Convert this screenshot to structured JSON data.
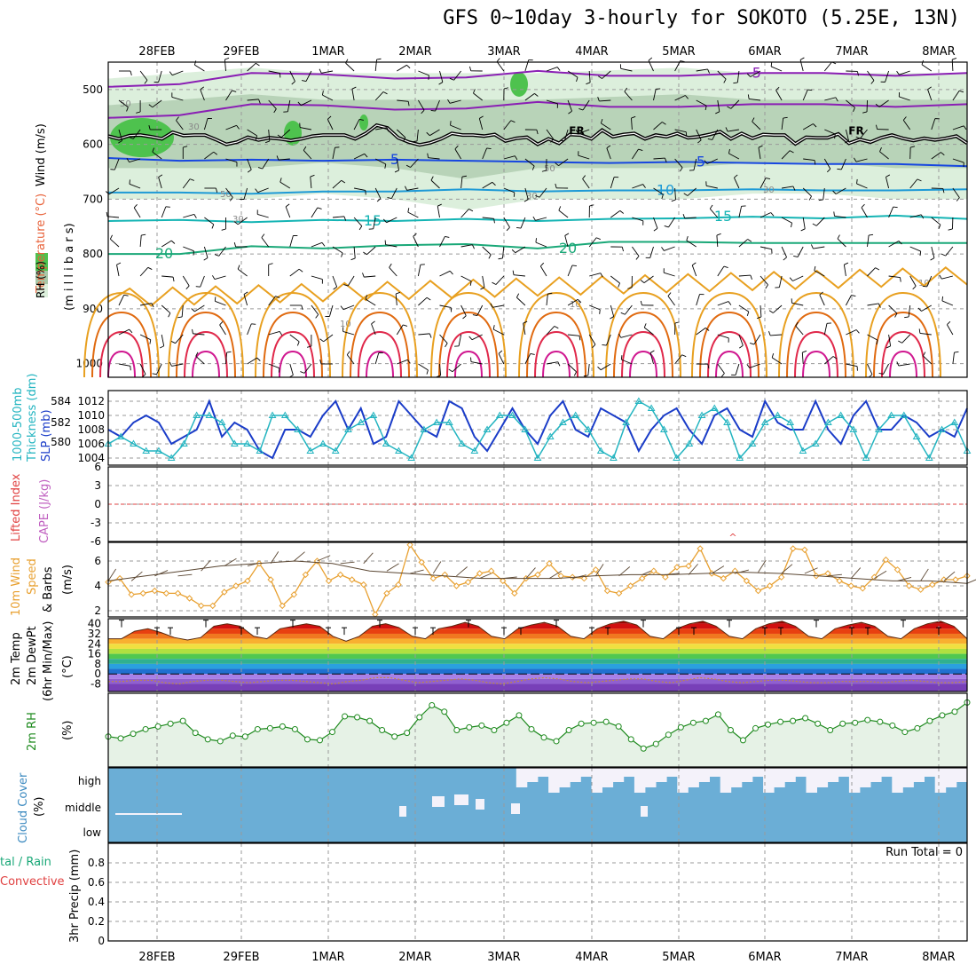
{
  "title": "GFS 0~10day 3-hourly for SOKOTO (5.25E, 13N)",
  "dates": [
    "28FEB",
    "29FEB",
    "1MAR",
    "2MAR",
    "3MAR",
    "4MAR",
    "5MAR",
    "6MAR",
    "7MAR",
    "8MAR"
  ],
  "panel_labels": {
    "upper_wind": "Wind (m/s)",
    "upper_temp": "Temperature (°C)",
    "upper_rh": "RH (%)",
    "upper_units": "(m i l l i b a r s)",
    "thick_a": "1000-500mb",
    "thick_b": "Thickness (dm)",
    "slp": "SLP (mb)",
    "li": "Lifted Index",
    "cape": "CAPE (J/kg)",
    "w10_a": "10m Wind",
    "w10_b": "Speed",
    "w10_c": "& Barbs",
    "w10_units": "(m/s)",
    "t2_a": "2m Temp",
    "t2_b": "2m DewPt",
    "t2_c": "(6hr Min/Max)",
    "t2_units": "(°C)",
    "rh2": "2m RH",
    "rh2_units": "(%)",
    "cloud": "Cloud Cover",
    "cloud_units": "(%)",
    "precip_a": "tal / Rain",
    "precip_b": "Convective",
    "precip_c": "3hr Precip (mm)",
    "run_total": "Run Total = 0"
  },
  "contour_labels": {
    "fr": "FR",
    "t_minus5": "-5",
    "t_5": "5",
    "t_10": "10",
    "t_15": "15",
    "t_20": "20",
    "rh_50": "50",
    "rh_30": "30",
    "rh_10": "10"
  },
  "colors": {
    "purple": "#8a1fb4",
    "black": "#000000",
    "blue": "#1747e0",
    "sky": "#1e9ad6",
    "teal": "#14b4b4",
    "green": "#1aa878",
    "orange": "#e8a020",
    "dkorange": "#e06a10",
    "red": "#e0284a",
    "magenta": "#d01890",
    "rh_light": "#dcefdc",
    "rh_mid": "#a8c8a8",
    "rh_dark": "#6e8a6e",
    "rh_green": "#4ec24e",
    "slp_line": "#1a3cc8",
    "thick_line": "#22b4c0",
    "li_line": "#e04040",
    "w10_line": "#e8a030",
    "rh2_line": "#1e8a1e",
    "rh2_fill": "#e6f2e6",
    "cloud_fill": "#6baed6",
    "cloud_gap": "#f4f2fa"
  },
  "chart_data": [
    {
      "type": "contour",
      "name": "upper",
      "ylabel": "Wind (m/s)",
      "yticks": [
        500,
        600,
        700,
        800,
        900,
        1000
      ],
      "ylim": [
        450,
        1025
      ],
      "fr_level": [
        585,
        590,
        584,
        583,
        586,
        590,
        578,
        584,
        583,
        583,
        591,
        600,
        596,
        587,
        592,
        588,
        590,
        593,
        590,
        585,
        583,
        583,
        583,
        590,
        580,
        565,
        570,
        588,
        596,
        601,
        597,
        590,
        580,
        583,
        583,
        585,
        582,
        594,
        589,
        587,
        600,
        590,
        598,
        582,
        583,
        590,
        574,
        586,
        582,
        580,
        590,
        583,
        586,
        580,
        588,
        586,
        582,
        577,
        590,
        580,
        589,
        582,
        583,
        583,
        599,
        587,
        588,
        588,
        581,
        598,
        591,
        596,
        588,
        583,
        589,
        593,
        589,
        592,
        589,
        585,
        598
      ],
      "isotherms": [
        {
          "name": "-5",
          "levels": [
            495,
            490,
            470,
            472,
            480,
            478,
            466,
            475,
            475,
            470,
            470,
            475,
            470
          ]
        },
        {
          "name": "5",
          "levels": [
            625,
            630,
            628,
            630,
            628,
            630,
            632,
            634,
            632,
            634,
            636,
            636,
            640
          ]
        },
        {
          "name": "10",
          "levels": [
            688,
            688,
            690,
            686,
            686,
            682,
            686,
            684,
            684,
            682,
            684,
            684,
            682
          ]
        },
        {
          "name": "15",
          "levels": [
            740,
            738,
            742,
            738,
            740,
            736,
            740,
            736,
            735,
            732,
            735,
            730,
            736
          ]
        },
        {
          "name": "20",
          "levels": [
            800,
            800,
            786,
            790,
            784,
            782,
            790,
            778,
            778,
            780,
            780,
            780,
            780
          ]
        }
      ],
      "rh_light_top": [
        480,
        470,
        460,
        470,
        470,
        470,
        470,
        465,
        460,
        470,
        470,
        470,
        470
      ],
      "rh_light_bottom": [
        700,
        700,
        700,
        690,
        700,
        720,
        700,
        700,
        700,
        690,
        690,
        700,
        700
      ]
    },
    {
      "type": "line",
      "name": "slp-thickness",
      "y2label": "SLP (mb)",
      "ylabel": "1000-500mb Thickness (dm)",
      "slp_ticks": [
        1004,
        1006,
        1008,
        1010,
        1012
      ],
      "thick_ticks": [
        580,
        582,
        584
      ],
      "slp_ylim": [
        1003,
        1013.5
      ],
      "slp": [
        1008,
        1007,
        1009,
        1010,
        1009,
        1006,
        1007,
        1008,
        1012,
        1007,
        1009,
        1008,
        1005,
        1004,
        1008,
        1008,
        1007,
        1010,
        1012,
        1008,
        1011,
        1006,
        1007,
        1012,
        1010,
        1008,
        1007,
        1012,
        1011,
        1007,
        1005,
        1008,
        1011,
        1008,
        1006,
        1010,
        1012,
        1008,
        1007,
        1011,
        1010,
        1009,
        1005,
        1008,
        1010,
        1011,
        1008,
        1006,
        1010,
        1011,
        1008,
        1007,
        1012,
        1009,
        1008,
        1008,
        1012,
        1008,
        1006,
        1010,
        1012,
        1008,
        1008,
        1010,
        1009,
        1007,
        1008,
        1007,
        1011
      ],
      "thick": [
        1006,
        1007,
        1006,
        1005,
        1005,
        1004,
        1006,
        1010,
        1010,
        1009,
        1006,
        1006,
        1005,
        1010,
        1010,
        1008,
        1005,
        1006,
        1005,
        1008,
        1009,
        1010,
        1006,
        1005,
        1004,
        1008,
        1009,
        1009,
        1006,
        1005,
        1008,
        1010,
        1010,
        1008,
        1004,
        1007,
        1009,
        1010,
        1008,
        1005,
        1004,
        1009,
        1012,
        1011,
        1008,
        1004,
        1006,
        1010,
        1011,
        1009,
        1004,
        1006,
        1009,
        1010,
        1009,
        1005,
        1006,
        1009,
        1010,
        1008,
        1004,
        1008,
        1010,
        1010,
        1007,
        1004,
        1008,
        1009,
        1005
      ]
    },
    {
      "type": "line",
      "name": "lifted-index-cape",
      "ylabel": "Lifted Index",
      "y2label": "CAPE (J/kg)",
      "yticks": [
        "6",
        "3",
        "0",
        "-3",
        "-6"
      ],
      "ylim": [
        -6,
        6
      ],
      "li": [
        0,
        0,
        0,
        0,
        0,
        0,
        0,
        0,
        0,
        0,
        0,
        0,
        0
      ]
    },
    {
      "type": "line",
      "name": "wind10",
      "ylabel": "10m Wind Speed & Barbs (m/s)",
      "yticks": [
        2,
        4,
        6
      ],
      "ylim": [
        1.5,
        7.5
      ],
      "values": [
        4.3,
        4.6,
        3.3,
        3.4,
        3.6,
        3.4,
        3.4,
        3.0,
        2.4,
        2.4,
        3.5,
        4.0,
        4.4,
        5.8,
        4.5,
        2.4,
        3.3,
        4.9,
        6.0,
        4.4,
        4.9,
        4.5,
        4.1,
        1.7,
        3.4,
        4.1,
        7.3,
        5.9,
        4.6,
        4.9,
        4.0,
        4.3,
        5.0,
        5.2,
        4.4,
        3.4,
        4.6,
        4.9,
        5.8,
        4.8,
        4.7,
        4.6,
        5.3,
        3.6,
        3.4,
        4.0,
        4.6,
        5.2,
        4.7,
        5.5,
        5.6,
        7.0,
        5.0,
        4.6,
        5.2,
        4.4,
        3.6,
        4.0,
        4.7,
        7.0,
        6.9,
        4.8,
        5.0,
        4.4,
        4.0,
        3.8,
        4.7,
        6.1,
        5.3,
        4.0,
        3.7,
        4.1,
        4.5,
        4.5,
        4.8
      ],
      "dewline": [
        4.4,
        4.8,
        5.2,
        5.6,
        5.8,
        6.0,
        5.8,
        5.2,
        5.0,
        4.8,
        4.6,
        4.6,
        4.6,
        4.8,
        4.9,
        4.9,
        5.0,
        5.1,
        5.0,
        4.8,
        4.6,
        4.4,
        4.4,
        4.2
      ]
    },
    {
      "type": "area",
      "name": "temp2m",
      "ylabel": "2m Temp 2m DewPt (6hr Min/Max) (°C)",
      "yticks": [
        "40",
        "32",
        "24",
        "16",
        "8",
        "0",
        "-8"
      ],
      "ylim": [
        -14,
        44
      ],
      "temp": [
        28,
        28,
        34,
        36,
        33,
        29,
        27,
        29,
        38,
        40,
        38,
        30,
        28,
        36,
        38,
        40,
        38,
        30,
        26,
        30,
        38,
        40,
        37,
        30,
        28,
        36,
        38,
        41,
        38,
        30,
        28,
        36,
        39,
        41,
        38,
        30,
        28,
        36,
        40,
        42,
        39,
        30,
        28,
        36,
        40,
        42,
        38,
        30,
        28,
        36,
        40,
        42,
        38,
        30,
        28,
        36,
        39,
        41,
        38,
        30,
        28,
        36,
        40,
        42,
        38,
        28
      ],
      "dewpt": [
        -6,
        -6,
        -5,
        -5,
        -7,
        -8,
        -6,
        -5,
        -5,
        -6,
        -7,
        -6,
        -5,
        -5,
        -6,
        -7,
        -8,
        -6,
        -5,
        -3,
        -3,
        -5,
        -7,
        -6,
        -5,
        -4,
        -5,
        -7,
        -8,
        -6,
        -4,
        -3,
        -4,
        -6,
        -7,
        -6,
        -5,
        -4,
        -4,
        -6,
        -7,
        -5,
        -3,
        -4,
        -6,
        -7,
        -6,
        -5,
        -5,
        -6,
        -7,
        -7,
        -6,
        -6,
        -6,
        -7,
        -6,
        -5,
        -6,
        -7,
        -7,
        -6
      ]
    },
    {
      "type": "area",
      "name": "rh2m",
      "ylabel": "2m RH (%)",
      "ylim": [
        0,
        80
      ],
      "values": [
        33,
        31,
        36,
        41,
        44,
        47,
        50,
        37,
        30,
        28,
        34,
        33,
        41,
        42,
        44,
        41,
        30,
        29,
        38,
        55,
        54,
        50,
        40,
        33,
        37,
        54,
        67,
        60,
        40,
        43,
        45,
        40,
        48,
        56,
        41,
        32,
        28,
        40,
        47,
        48,
        49,
        44,
        30,
        20,
        25,
        35,
        43,
        48,
        50,
        57,
        40,
        29,
        42,
        46,
        49,
        50,
        53,
        47,
        40,
        47,
        48,
        51,
        49,
        45,
        38,
        42,
        50,
        56,
        60,
        70
      ]
    },
    {
      "type": "heatmap",
      "name": "cloud",
      "ylabel": "Cloud Cover (%)",
      "yticks": [
        "high",
        "middle",
        "low"
      ],
      "high": [
        0,
        0,
        0,
        0,
        0,
        0,
        0,
        0,
        0,
        0,
        0,
        0,
        0,
        0,
        0,
        0,
        0,
        0,
        0,
        0,
        0,
        0,
        0,
        0,
        0,
        0,
        0,
        0,
        0,
        0,
        0,
        0,
        0,
        0,
        0,
        0,
        0,
        0,
        1,
        1,
        1,
        1,
        1,
        1,
        1,
        1,
        1,
        1,
        1,
        1,
        1,
        1,
        1,
        1,
        1,
        1,
        1,
        1,
        1,
        1,
        1,
        1,
        1,
        1,
        1,
        1,
        1,
        1,
        1,
        1,
        1,
        1,
        1,
        1,
        1,
        1,
        1,
        1,
        1,
        1
      ],
      "middle": [
        0,
        0,
        0,
        0,
        0,
        0,
        0,
        0,
        0,
        0,
        0,
        0,
        0,
        0,
        0,
        0,
        0,
        0,
        0,
        0,
        0,
        0,
        0,
        0,
        0,
        0,
        0,
        0,
        0,
        0,
        0,
        0,
        0,
        0,
        0,
        0,
        0,
        0,
        0,
        0,
        0,
        0,
        0,
        0,
        0,
        0,
        0,
        0,
        0,
        0,
        0,
        0,
        0,
        0,
        0,
        0,
        0,
        0,
        0,
        0,
        0,
        0,
        0,
        0,
        0,
        0,
        0,
        0,
        0,
        0,
        0,
        0,
        0,
        0,
        0,
        0,
        0,
        0,
        0,
        0
      ]
    },
    {
      "type": "bar",
      "name": "precip",
      "ylabel": "3hr Precip (mm)",
      "yticks": [
        0,
        0.2,
        0.4,
        0.6,
        0.8
      ],
      "ylim": [
        0,
        1
      ],
      "values": []
    }
  ]
}
